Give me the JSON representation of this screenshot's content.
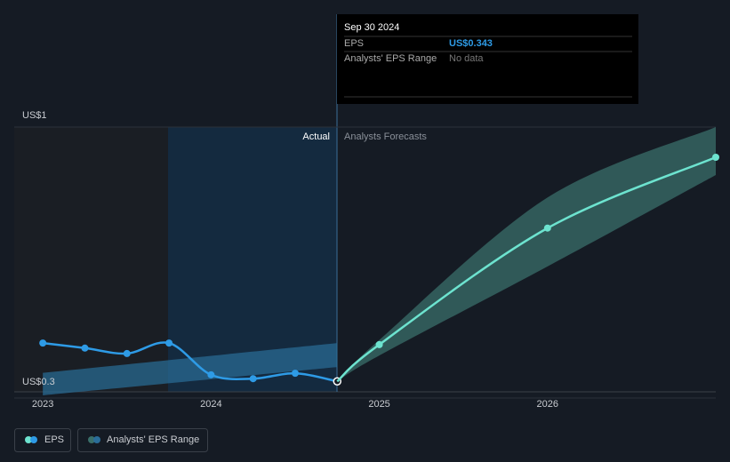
{
  "chart_data": {
    "type": "line",
    "tooltip": {
      "date": "Sep 30 2024",
      "rows": [
        [
          "EPS",
          "US$0.343"
        ],
        [
          "Analysts' EPS Range",
          "No data"
        ]
      ]
    },
    "annotations": [
      "Actual",
      "Analysts Forecasts"
    ],
    "xlim": [
      2022.83,
      2027
    ],
    "xticks": [
      2023,
      2024,
      2025,
      2026
    ],
    "ylim": [
      0.3,
      1
    ],
    "yticks": [
      {
        "value": 0.3,
        "label": "US$0.3"
      },
      {
        "value": 1,
        "label": "US$1"
      }
    ],
    "series": [
      {
        "name": "EPS",
        "color": "#2e9be6",
        "x": [
          2023,
          2023.25,
          2023.5,
          2023.75,
          2024,
          2024.25,
          2024.5,
          2024.75
        ],
        "values": [
          0.442,
          0.429,
          0.415,
          0.442,
          0.36,
          0.35,
          0.364,
          0.343
        ]
      },
      {
        "color": "#6de3cf",
        "x": [
          2024.75,
          2025,
          2026,
          2027
        ],
        "values": [
          0.343,
          0.438,
          0.739,
          0.922
        ]
      }
    ],
    "ranges": [
      {
        "name": "Analysts' EPS Range",
        "color": "#2a6d99",
        "x": [
          2023,
          2024.75
        ],
        "low": [
          0.307,
          0.38
        ],
        "high": [
          0.365,
          0.442
        ]
      },
      {
        "color": "#3a6f6a",
        "x": [
          2024.75,
          2025,
          2026,
          2027
        ],
        "low": [
          0.343,
          0.41,
          0.64,
          0.876
        ],
        "high": [
          0.343,
          0.45,
          0.818,
          1.0
        ]
      }
    ]
  }
}
